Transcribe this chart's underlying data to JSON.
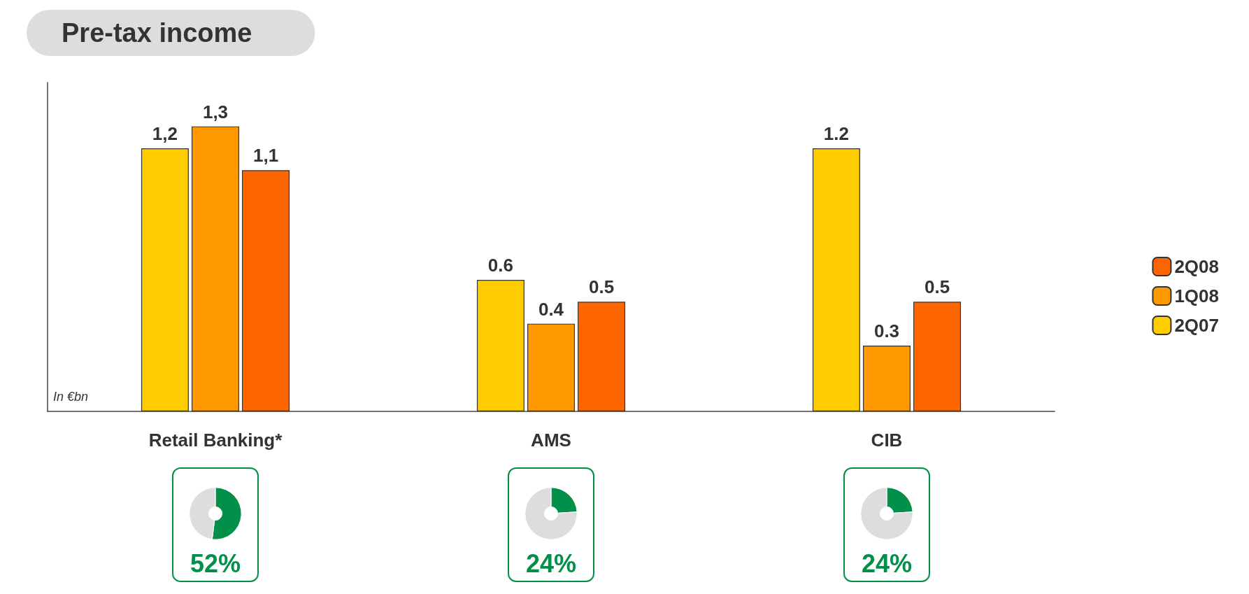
{
  "chart_data": [
    {
      "type": "bar",
      "title": "Pre-tax income",
      "categories": [
        "Retail Banking*",
        "AMS",
        "CIB"
      ],
      "series": [
        {
          "name": "2Q07",
          "color": "#ffcc00",
          "values": [
            1.2,
            0.6,
            1.2
          ],
          "value_labels": [
            "1,2",
            "0.6",
            "1.2"
          ]
        },
        {
          "name": "1Q08",
          "color": "#ff9900",
          "values": [
            1.3,
            0.4,
            0.3
          ],
          "value_labels": [
            "1,3",
            "0.4",
            "0.3"
          ]
        },
        {
          "name": "2Q08",
          "color": "#ff6600",
          "values": [
            1.1,
            0.5,
            0.5
          ],
          "value_labels": [
            "1,1",
            "0.5",
            "0.5"
          ]
        }
      ],
      "annotations": [
        "In €bn"
      ],
      "legend": "right",
      "grid": false,
      "tick_labels": "x"
    },
    {
      "type": "donut",
      "title": "52%",
      "categories": [
        null,
        null
      ],
      "values": [
        52,
        48
      ],
      "colors": [
        "#00904a",
        "#dddddd"
      ]
    },
    {
      "type": "donut",
      "title": "24%",
      "categories": [
        null,
        null
      ],
      "values": [
        24,
        76
      ],
      "colors": [
        "#00904a",
        "#dddddd"
      ]
    },
    {
      "type": "donut",
      "title": "24%",
      "categories": [
        null,
        null
      ],
      "values": [
        24,
        76
      ],
      "colors": [
        "#00904a",
        "#dddddd"
      ]
    }
  ]
}
